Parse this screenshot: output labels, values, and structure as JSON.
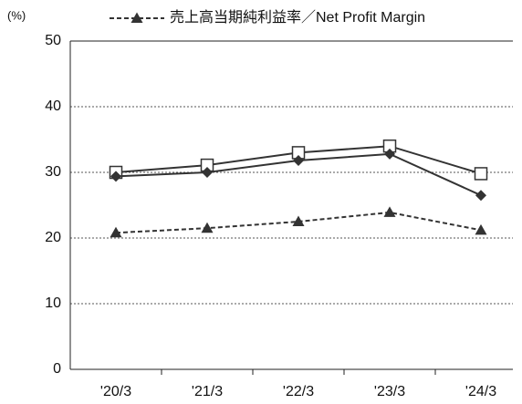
{
  "chart_data": {
    "type": "line",
    "y_label": "(%)",
    "categories": [
      "'20/3",
      "'21/3",
      "'22/3",
      "'23/3",
      "'24/3"
    ],
    "series": [
      {
        "color": "#333333",
        "marker": "square",
        "dash": false,
        "values": [
          30.0,
          31.1,
          33.0,
          34.0,
          29.8
        ]
      },
      {
        "color": "#333333",
        "marker": "diamond",
        "dash": false,
        "values": [
          29.4,
          30.0,
          31.8,
          32.8,
          26.5
        ]
      },
      {
        "name": "売上高当期純利益率／Net Profit Margin",
        "color": "#333333",
        "marker": "triangle",
        "dash": true,
        "values": [
          20.8,
          21.5,
          22.5,
          23.9,
          21.2
        ]
      }
    ],
    "ylim": [
      0,
      50
    ],
    "yticks": [
      0,
      10,
      20,
      30,
      40,
      50
    ],
    "grid": true
  }
}
